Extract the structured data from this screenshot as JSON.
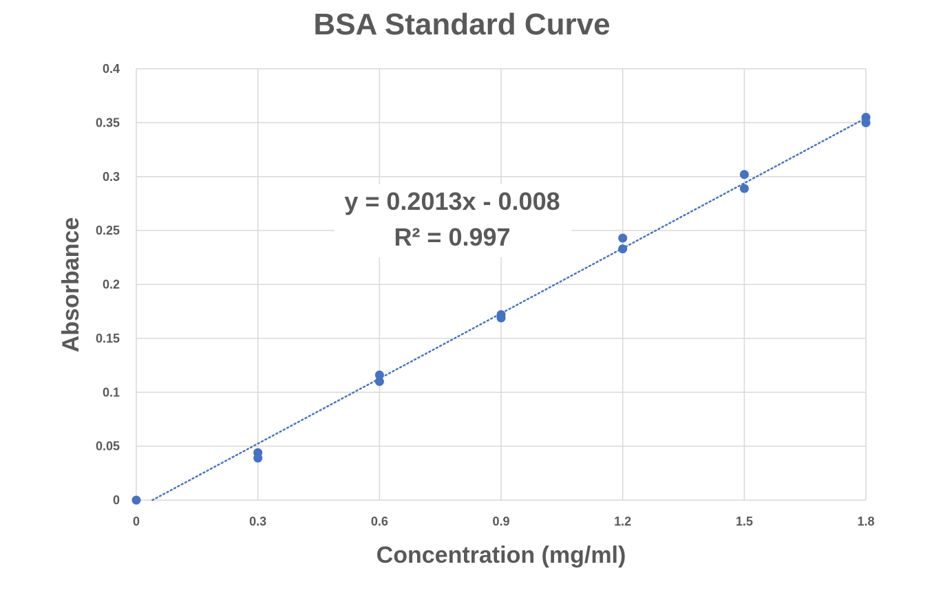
{
  "chart_data": {
    "type": "scatter",
    "title": "BSA Standard Curve",
    "xlabel": "Concentration (mg/ml)",
    "ylabel": "Absorbance",
    "xlim": [
      0,
      1.8
    ],
    "ylim": [
      0,
      0.4
    ],
    "xticks": [
      "0",
      "0.3",
      "0.6",
      "0.9",
      "1.2",
      "1.5",
      "1.8"
    ],
    "yticks": [
      "0",
      "0.05",
      "0.1",
      "0.15",
      "0.2",
      "0.25",
      "0.3",
      "0.35",
      "0.4"
    ],
    "grid": true,
    "series": [
      {
        "color": "#4472c4",
        "points": [
          {
            "x": 0,
            "y": 0
          },
          {
            "x": 0.3,
            "y": 0.044
          },
          {
            "x": 0.3,
            "y": 0.039
          },
          {
            "x": 0.6,
            "y": 0.116
          },
          {
            "x": 0.6,
            "y": 0.11
          },
          {
            "x": 0.9,
            "y": 0.172
          },
          {
            "x": 0.9,
            "y": 0.169
          },
          {
            "x": 1.2,
            "y": 0.243
          },
          {
            "x": 1.2,
            "y": 0.233
          },
          {
            "x": 1.5,
            "y": 0.302
          },
          {
            "x": 1.5,
            "y": 0.289
          },
          {
            "x": 1.8,
            "y": 0.355
          },
          {
            "x": 1.8,
            "y": 0.35
          }
        ],
        "trendline": {
          "type": "linear",
          "slope": 0.2013,
          "intercept": -0.008,
          "style": "dotted",
          "equation_label": "y = 0.2013x - 0.008",
          "r2_label": "R² = 0.997"
        }
      }
    ]
  }
}
